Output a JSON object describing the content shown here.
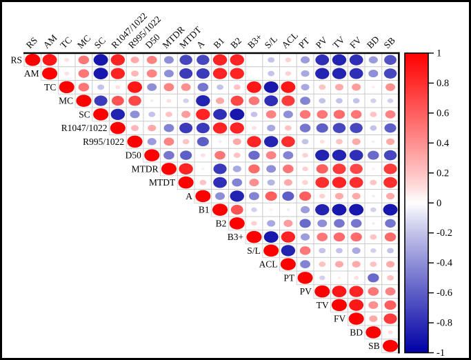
{
  "chart_data": {
    "type": "heatmap",
    "subtype": "correlation-matrix-upper-triangle",
    "title": "",
    "labels": [
      "RS",
      "AM",
      "TC",
      "MC",
      "SC",
      "R1047/1022",
      "R995/1022",
      "D50",
      "MTDR",
      "MTDT",
      "A",
      "B1",
      "B2",
      "B3+",
      "S/L",
      "ACL",
      "PT",
      "PV",
      "TV",
      "FV",
      "BD",
      "SB"
    ],
    "upper_triangle_rows": [
      {
        "label": "RS",
        "values": [
          1,
          0.9,
          0.1,
          0.5,
          -0.9,
          0.85,
          0.3,
          0.45,
          -0.4,
          -0.7,
          -0.7,
          0.85,
          0.85,
          0.02,
          -0.2,
          0.15,
          -0.35,
          -0.8,
          -0.85,
          -0.8,
          -0.35,
          -0.65
        ]
      },
      {
        "label": "AM",
        "values": [
          1,
          0.1,
          0.5,
          -0.9,
          0.85,
          0.25,
          0.45,
          -0.4,
          -0.75,
          -0.75,
          0.85,
          0.85,
          0,
          -0.2,
          0.15,
          -0.3,
          -0.85,
          -0.85,
          -0.8,
          -0.4,
          -0.7
        ]
      },
      {
        "label": "TC",
        "values": [
          1,
          0.5,
          -0.2,
          0.1,
          0.9,
          -0.4,
          0.45,
          0.4,
          -0.5,
          -0.2,
          0.2,
          0.9,
          -0.9,
          0.9,
          -0.3,
          0.2,
          0.3,
          0.35,
          0.05,
          0.4
        ]
      },
      {
        "label": "MC",
        "values": [
          1,
          -0.75,
          0.65,
          0.7,
          -0.05,
          0.1,
          -0.15,
          -0.85,
          0.3,
          0.7,
          0.5,
          -0.8,
          0.75,
          -0.45,
          -0.2,
          -0.2,
          -0.2,
          -0.15,
          -0.15
        ]
      },
      {
        "label": "SC",
        "values": [
          1,
          -0.85,
          -0.4,
          -0.2,
          0.2,
          0.35,
          0.85,
          -0.8,
          -0.9,
          -0.2,
          0.45,
          -0.4,
          0.5,
          0.5,
          0.55,
          0.5,
          0.2,
          0.45
        ]
      },
      {
        "label": "R1047/1022",
        "values": [
          1,
          0.25,
          0.3,
          -0.45,
          -0.75,
          -0.75,
          0.85,
          0.85,
          0.1,
          -0.3,
          0.2,
          -0.5,
          -0.6,
          -0.7,
          -0.7,
          -0.2,
          -0.6
        ]
      },
      {
        "label": "R995/1022",
        "values": [
          1,
          -0.35,
          0.45,
          0.2,
          -0.6,
          -0.05,
          0.3,
          0.85,
          -0.85,
          0.8,
          -0.2,
          0.1,
          0.2,
          0.3,
          -0.05,
          0.3
        ]
      },
      {
        "label": "D50",
        "values": [
          1,
          -0.5,
          -0.6,
          0.1,
          0.5,
          0.2,
          -0.55,
          0.45,
          -0.45,
          0.15,
          -0.85,
          -0.85,
          -0.8,
          -0.55,
          -0.7
        ]
      },
      {
        "label": "MTDR",
        "values": [
          1,
          0.85,
          0.05,
          -0.75,
          -0.3,
          0.55,
          -0.4,
          0.5,
          0.15,
          0.6,
          0.75,
          0.7,
          0.05,
          0.75
        ]
      },
      {
        "label": "MTDT",
        "values": [
          1,
          0.2,
          -0.8,
          -0.45,
          0.4,
          -0.25,
          0.3,
          0.15,
          0.8,
          0.85,
          0.8,
          0.2,
          0.8
        ]
      },
      {
        "label": "A",
        "values": [
          1,
          -0.4,
          -0.85,
          -0.45,
          0.6,
          -0.6,
          0.6,
          0.15,
          0.3,
          0.3,
          -0.05,
          0.3
        ]
      },
      {
        "label": "B1",
        "values": [
          1,
          0.65,
          -0.15,
          0.05,
          -0.05,
          -0.35,
          -0.85,
          -0.9,
          -0.9,
          -0.15,
          -0.9
        ]
      },
      {
        "label": "B2",
        "values": [
          1,
          0.15,
          -0.3,
          0.35,
          -0.55,
          -0.4,
          -0.5,
          -0.5,
          -0.05,
          -0.5
        ]
      },
      {
        "label": "B3+",
        "values": [
          1,
          -0.9,
          0.85,
          -0.35,
          0.5,
          0.55,
          0.55,
          0.2,
          0.55
        ]
      },
      {
        "label": "S/L",
        "values": [
          1,
          -0.85,
          0.5,
          -0.2,
          -0.2,
          -0.3,
          -0.15,
          -0.2
        ]
      },
      {
        "label": "ACL",
        "values": [
          1,
          -0.45,
          0.2,
          0.3,
          0.3,
          0.2,
          0.3
        ]
      },
      {
        "label": "PT",
        "values": [
          1,
          -0.15,
          0.05,
          0.1,
          -0.55,
          0.2
        ]
      },
      {
        "label": "PV",
        "values": [
          1,
          0.9,
          0.85,
          0.5,
          0.45
        ]
      },
      {
        "label": "TV",
        "values": [
          1,
          0.9,
          0.4,
          0.6
        ]
      },
      {
        "label": "FV",
        "values": [
          1,
          0.3,
          0.75
        ]
      },
      {
        "label": "BD",
        "values": [
          1,
          0.1
        ]
      },
      {
        "label": "SB",
        "values": [
          1
        ]
      }
    ],
    "legend": {
      "position": "right",
      "min": -1,
      "max": 1,
      "colorbar_ticks": [
        "1",
        "0.8",
        "0.6",
        "0.4",
        "0.2",
        "0",
        "-0.2",
        "-0.4",
        "-0.6",
        "-0.8",
        "-1"
      ]
    },
    "colors": {
      "positive": "#FF0000",
      "zero": "#FFFFFF",
      "negative": "#0000A6",
      "grid": "#C9C9C9",
      "axis": "#000000"
    },
    "grid": true
  }
}
